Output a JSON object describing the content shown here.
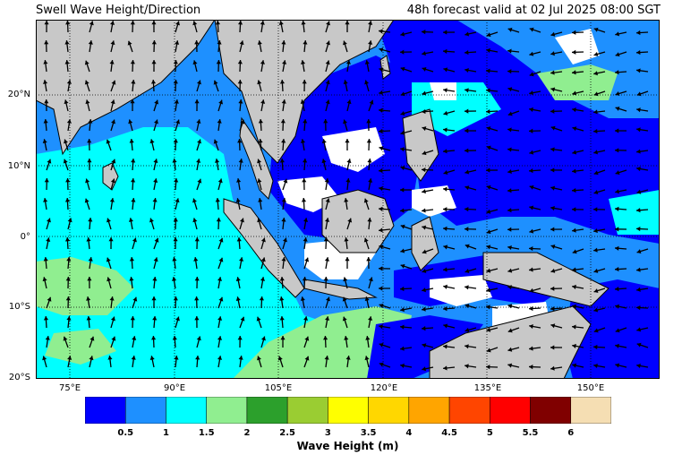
{
  "header": {
    "title": "Swell Wave Height/Direction",
    "valid_text": "48h forecast valid at 02 Jul 2025 08:00 SGT"
  },
  "map": {
    "lon_labels": [
      "75°E",
      "90°E",
      "105°E",
      "120°E",
      "135°E",
      "150°E"
    ],
    "lat_labels": [
      "20°N",
      "10°N",
      "0°",
      "10°S",
      "20°S"
    ],
    "colors": {
      "land": "#c8c8c8",
      "no_data": "#ffffff",
      "grid": "#000000",
      "arrow": "#000000"
    }
  },
  "colorbar": {
    "title": "Wave Height (m)",
    "tick_labels": [
      "0.5",
      "1",
      "1.5",
      "2",
      "2.5",
      "3",
      "3.5",
      "4",
      "4.5",
      "5",
      "5.5",
      "6"
    ],
    "colors": [
      "#0000ff",
      "#1e90ff",
      "#00ffff",
      "#90ee90",
      "#2ca02c",
      "#9acd32",
      "#ffff00",
      "#ffd700",
      "#ffa500",
      "#ff4500",
      "#ff0000",
      "#800000",
      "#f5deb3"
    ]
  }
}
